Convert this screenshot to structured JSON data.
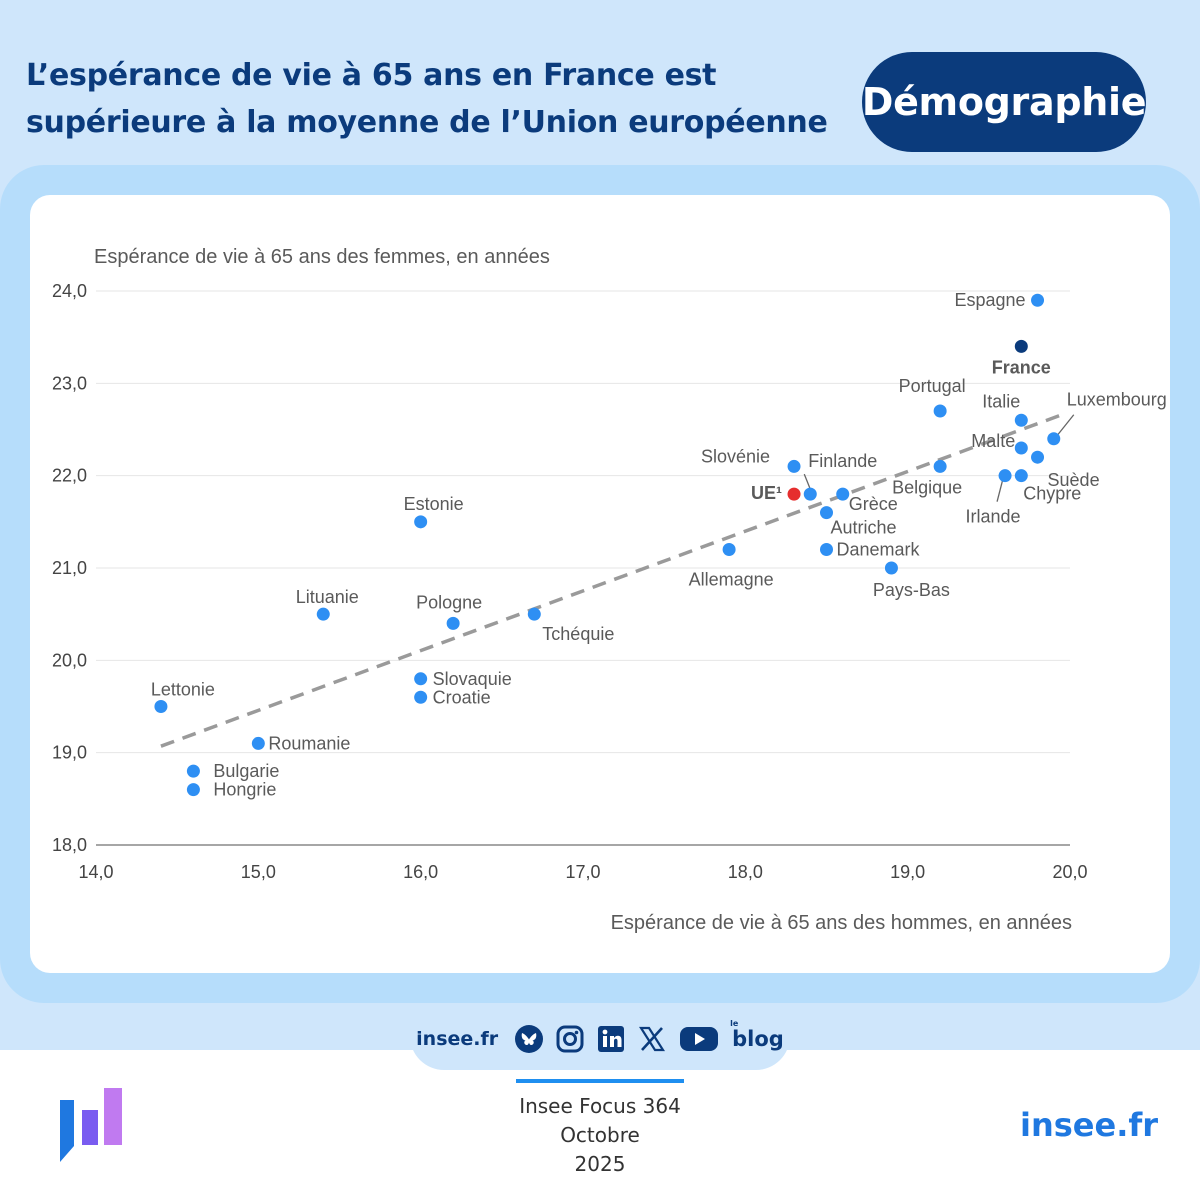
{
  "header": {
    "title_line1": "L’espérance de vie à 65 ans en France est",
    "title_line2": "supérieure à la moyenne de l’Union européenne",
    "badge": "Démographie"
  },
  "chart_data": {
    "type": "scatter",
    "ylabel": "Espérance de vie à 65 ans des femmes, en années",
    "xlabel": "Espérance de vie à 65 ans des hommes, en années",
    "xlim": [
      14,
      20
    ],
    "ylim": [
      18,
      24
    ],
    "x_ticks": [
      "14,0",
      "15,0",
      "16,0",
      "17,0",
      "18,0",
      "19,0",
      "20,0"
    ],
    "y_ticks": [
      "18,0",
      "19,0",
      "20,0",
      "21,0",
      "22,0",
      "23,0",
      "24,0"
    ],
    "trend_line": {
      "x": [
        14.4,
        19.95
      ],
      "y": [
        19.07,
        22.66
      ]
    },
    "colors": {
      "default": "#2e8ff3",
      "france": "#0b3b7c",
      "ue": "#e62e2e",
      "trend": "#9a9a9a"
    },
    "points": [
      {
        "name": "Espagne",
        "x": 19.8,
        "y": 23.9,
        "kind": "default"
      },
      {
        "name": "France",
        "x": 19.7,
        "y": 23.4,
        "kind": "france"
      },
      {
        "name": "Portugal",
        "x": 19.2,
        "y": 22.7,
        "kind": "default"
      },
      {
        "name": "Italie",
        "x": 19.7,
        "y": 22.6,
        "kind": "default"
      },
      {
        "name": "Luxembourg",
        "x": 19.9,
        "y": 22.4,
        "kind": "default"
      },
      {
        "name": "Malte",
        "x": 19.7,
        "y": 22.3,
        "kind": "default"
      },
      {
        "name": "Suède",
        "x": 19.8,
        "y": 22.2,
        "kind": "default"
      },
      {
        "name": "Belgique",
        "x": 19.2,
        "y": 22.1,
        "kind": "default"
      },
      {
        "name": "Irlande",
        "x": 19.6,
        "y": 22.0,
        "kind": "default"
      },
      {
        "name": "Chypre",
        "x": 19.7,
        "y": 22.0,
        "kind": "default"
      },
      {
        "name": "Slovénie",
        "x": 18.3,
        "y": 22.1,
        "kind": "default"
      },
      {
        "name": "UE¹",
        "x": 18.3,
        "y": 21.8,
        "kind": "ue"
      },
      {
        "name": "Finlande",
        "x": 18.4,
        "y": 21.8,
        "kind": "default"
      },
      {
        "name": "Grèce",
        "x": 18.6,
        "y": 21.8,
        "kind": "default"
      },
      {
        "name": "Autriche",
        "x": 18.5,
        "y": 21.6,
        "kind": "default"
      },
      {
        "name": "Danemark",
        "x": 18.5,
        "y": 21.2,
        "kind": "default"
      },
      {
        "name": "Allemagne",
        "x": 17.9,
        "y": 21.2,
        "kind": "default"
      },
      {
        "name": "Pays-Bas",
        "x": 18.9,
        "y": 21.0,
        "kind": "default"
      },
      {
        "name": "Estonie",
        "x": 16.0,
        "y": 21.5,
        "kind": "default"
      },
      {
        "name": "Lituanie",
        "x": 15.4,
        "y": 20.5,
        "kind": "default"
      },
      {
        "name": "Pologne",
        "x": 16.2,
        "y": 20.4,
        "kind": "default"
      },
      {
        "name": "Tchéquie",
        "x": 16.7,
        "y": 20.5,
        "kind": "default"
      },
      {
        "name": "Slovaquie",
        "x": 16.0,
        "y": 19.8,
        "kind": "default"
      },
      {
        "name": "Croatie",
        "x": 16.0,
        "y": 19.6,
        "kind": "default"
      },
      {
        "name": "Lettonie",
        "x": 14.4,
        "y": 19.5,
        "kind": "default"
      },
      {
        "name": "Roumanie",
        "x": 15.0,
        "y": 19.1,
        "kind": "default"
      },
      {
        "name": "Bulgarie",
        "x": 14.6,
        "y": 18.8,
        "kind": "default"
      },
      {
        "name": "Hongrie",
        "x": 14.6,
        "y": 18.6,
        "kind": "default"
      }
    ]
  },
  "footer": {
    "social_site": "insee.fr",
    "blog": "blog",
    "blog_prefix": "le",
    "publication": "Insee Focus 364",
    "month": "Octobre",
    "year": "2025",
    "brand": "insee.fr"
  }
}
